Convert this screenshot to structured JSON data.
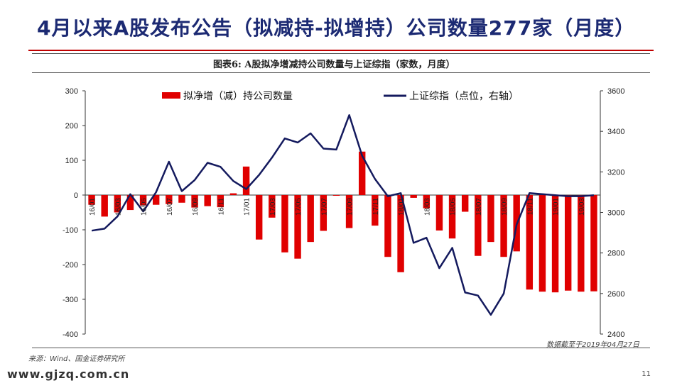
{
  "slide": {
    "title": "4月以来A股发布公告（拟减持-拟增持）公司数量277家（月度）",
    "figure_title": "图表6: A股拟净增减持公司数量与上证综指（家数，月度）",
    "source": "来源：Wind、国金证券研究所",
    "note": "数据截至于2019年04月27日",
    "watermark": "www.gjzq.com.cn",
    "page_number": "11"
  },
  "colors": {
    "title": "#1c2a73",
    "rule": "#c00000",
    "bar": "#e00000",
    "line": "#141a5e"
  },
  "chart_data": {
    "type": "bar+line",
    "categories": [
      "16/01",
      "16/02",
      "16/03",
      "16/04",
      "16/05",
      "16/06",
      "16/07",
      "16/08",
      "16/09",
      "16/10",
      "16/11",
      "16/12",
      "17/01",
      "17/02",
      "17/03",
      "17/04",
      "17/05",
      "17/06",
      "17/07",
      "17/08",
      "17/09",
      "17/10",
      "17/11",
      "17/12",
      "18/01",
      "18/02",
      "18/03",
      "18/04",
      "18/05",
      "18/06",
      "18/07",
      "18/08",
      "18/09",
      "18/10",
      "18/11",
      "18/12",
      "19/01",
      "19/02",
      "19/03",
      "19/04"
    ],
    "x_tick_labels": [
      "16/01",
      "16/03",
      "16/05",
      "16/07",
      "16/09",
      "16/11",
      "17/01",
      "17/03",
      "17/05",
      "17/07",
      "17/09",
      "17/11",
      "18/01",
      "18/03",
      "18/05",
      "18/07",
      "18/09",
      "18/11",
      "19/01",
      "19/03"
    ],
    "series": [
      {
        "name": "拟净增（减）持公司数量",
        "type": "bar",
        "axis": "left",
        "values": [
          -28,
          -62,
          -50,
          -43,
          -30,
          -28,
          -26,
          -22,
          -36,
          -32,
          -35,
          5,
          82,
          -128,
          -65,
          -165,
          -183,
          -135,
          -103,
          -2,
          -95,
          125,
          -88,
          -178,
          -222,
          -8,
          -38,
          -102,
          -125,
          -48,
          -175,
          -135,
          -178,
          -162,
          -272,
          -278,
          -280,
          -275,
          -278,
          -277
        ]
      },
      {
        "name": "上证综指（点位，右轴）",
        "type": "line",
        "axis": "right",
        "values": [
          2910,
          2920,
          2980,
          3090,
          3005,
          3100,
          3250,
          3105,
          3160,
          3245,
          3225,
          3155,
          3115,
          3185,
          3270,
          3365,
          3345,
          3390,
          3315,
          3310,
          3480,
          3280,
          3165,
          3080,
          3095,
          2850,
          2875,
          2725,
          2825,
          2605,
          2590,
          2495,
          2600,
          2940,
          3095,
          3090,
          3085,
          3080,
          3080,
          3085
        ]
      }
    ],
    "yleft": {
      "min": -400,
      "max": 300,
      "ticks": [
        300,
        200,
        100,
        0,
        -100,
        -200,
        -300,
        -400
      ]
    },
    "yright": {
      "min": 2400,
      "max": 3600,
      "ticks": [
        3600,
        3400,
        3200,
        3000,
        2800,
        2600,
        2400
      ]
    },
    "legend_position": "top",
    "grid": false
  }
}
